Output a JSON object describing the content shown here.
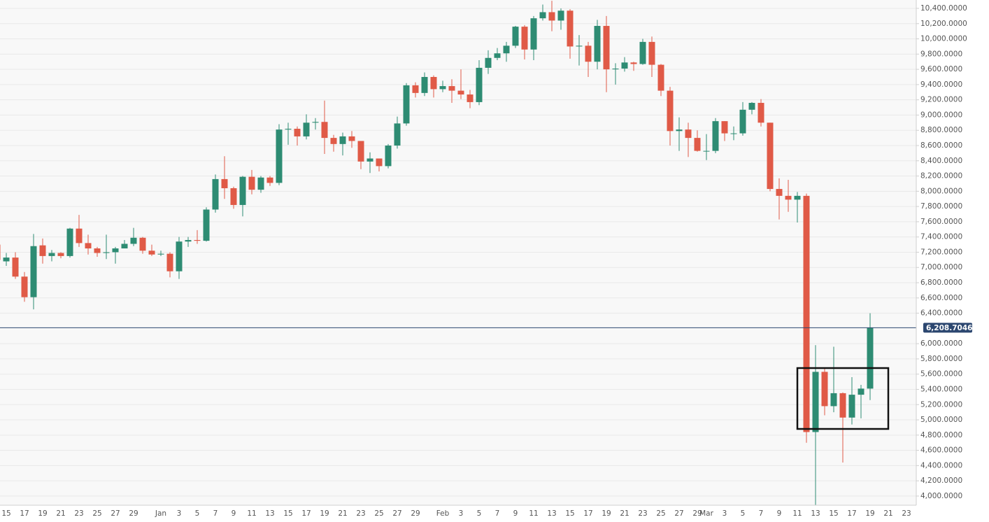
{
  "chart_data": {
    "type": "candlestick",
    "up_color": "#2e8c73",
    "down_color": "#e05a47",
    "grid": true,
    "categories": [
      null,
      "15",
      null,
      "17",
      null,
      "19",
      null,
      "21",
      null,
      "23",
      null,
      "25",
      null,
      "27",
      null,
      "29",
      null,
      null,
      "Jan",
      null,
      "3",
      null,
      "5",
      null,
      "7",
      null,
      "9",
      null,
      "11",
      null,
      "13",
      null,
      "15",
      null,
      "17",
      null,
      "19",
      null,
      "21",
      null,
      "23",
      null,
      "25",
      null,
      "27",
      null,
      "29",
      null,
      null,
      "Feb",
      null,
      "3",
      null,
      "5",
      null,
      "7",
      null,
      "9",
      null,
      "11",
      null,
      "13",
      null,
      "15",
      null,
      "17",
      null,
      "19",
      null,
      "21",
      null,
      "23",
      null,
      "25",
      null,
      "27",
      null,
      "29",
      "Mar",
      null,
      "3",
      null,
      "5",
      null,
      "7",
      null,
      "9",
      null,
      "11",
      null,
      "13",
      null,
      "15",
      null,
      "17",
      null,
      "19",
      null,
      "21",
      null,
      "23"
    ],
    "open": [
      7300,
      7080,
      7130,
      6880,
      6610,
      7290,
      7150,
      7190,
      7150,
      7510,
      7320,
      7250,
      7190,
      7200,
      7250,
      7310,
      7390,
      7220,
      7170,
      7180,
      6950,
      7340,
      7360,
      7350,
      7760,
      8160,
      8040,
      7820,
      8190,
      8020,
      8180,
      8110,
      8810,
      8820,
      8720,
      8900,
      8910,
      8700,
      8620,
      8720,
      8660,
      8390,
      8430,
      8330,
      8600,
      8890,
      9390,
      9290,
      9500,
      9340,
      9380,
      9320,
      9270,
      9170,
      9620,
      9750,
      9810,
      9910,
      10160,
      9860,
      10270,
      10350,
      10240,
      10370,
      9900,
      9910,
      9700,
      10170,
      9600,
      9610,
      9690,
      9670,
      9960,
      9660,
      9320,
      8790,
      8810,
      8700,
      8530,
      8530,
      8920,
      8760,
      8760,
      9070,
      9160,
      8900,
      8030,
      7940,
      7890,
      7940,
      4840,
      5630,
      5180,
      5350,
      5030,
      5330,
      5410,
      null,
      null,
      null,
      null
    ],
    "high": [
      7330,
      7190,
      7200,
      6940,
      7440,
      7380,
      7230,
      7200,
      7520,
      7690,
      7430,
      7270,
      7430,
      7270,
      7360,
      7520,
      7400,
      7300,
      7220,
      7200,
      7400,
      7400,
      7490,
      7790,
      8220,
      8460,
      8060,
      8200,
      8280,
      8200,
      8200,
      8880,
      8900,
      8850,
      9010,
      8960,
      9190,
      8740,
      8770,
      8790,
      8660,
      8510,
      8430,
      8620,
      8980,
      9420,
      9430,
      9560,
      9520,
      9450,
      9470,
      9600,
      9330,
      9720,
      9850,
      9880,
      9960,
      10170,
      10180,
      10300,
      10450,
      10500,
      10400,
      10390,
      10050,
      9960,
      10250,
      10300,
      9680,
      9760,
      9700,
      10000,
      10030,
      9670,
      9370,
      8970,
      8900,
      8800,
      8750,
      8960,
      8920,
      8850,
      9170,
      9170,
      9210,
      8900,
      8170,
      8150,
      7990,
      7970,
      5980,
      5680,
      5960,
      5360,
      5560,
      5460,
      6400,
      null,
      null,
      null,
      null
    ],
    "low": [
      7050,
      7020,
      6850,
      6550,
      6450,
      7050,
      7080,
      7120,
      7130,
      7270,
      7170,
      7140,
      7110,
      7050,
      7260,
      7280,
      7180,
      7150,
      7150,
      6870,
      6850,
      7270,
      7310,
      7340,
      7720,
      7900,
      7770,
      7670,
      7960,
      7980,
      8070,
      8080,
      8610,
      8600,
      8680,
      8810,
      8490,
      8520,
      8470,
      8570,
      8290,
      8240,
      8260,
      8300,
      8560,
      8860,
      9230,
      9250,
      9230,
      9300,
      9160,
      9210,
      9090,
      9130,
      9540,
      9720,
      9700,
      9880,
      9730,
      9720,
      10240,
      10100,
      10120,
      9740,
      9650,
      9500,
      9600,
      9300,
      9400,
      9570,
      9580,
      9660,
      9500,
      9250,
      8600,
      8530,
      8450,
      8520,
      8410,
      8500,
      8660,
      8670,
      8730,
      9010,
      8850,
      8000,
      7630,
      7730,
      7590,
      4700,
      3850,
      5060,
      5100,
      4440,
      4940,
      5020,
      5260,
      null,
      null,
      null,
      null
    ],
    "close": [
      7100,
      7130,
      6880,
      6610,
      7280,
      7150,
      7190,
      7150,
      7510,
      7320,
      7250,
      7190,
      7200,
      7250,
      7310,
      7390,
      7220,
      7170,
      7180,
      6950,
      7340,
      7360,
      7350,
      7760,
      8160,
      8040,
      7820,
      8190,
      8020,
      8180,
      8110,
      8810,
      8820,
      8720,
      8900,
      8910,
      8700,
      8620,
      8720,
      8660,
      8390,
      8430,
      8330,
      8600,
      8890,
      9390,
      9290,
      9500,
      9340,
      9380,
      9320,
      9270,
      9170,
      9620,
      9750,
      9810,
      9910,
      10160,
      9860,
      10270,
      10350,
      10240,
      10370,
      9900,
      9910,
      9700,
      10170,
      9600,
      9610,
      9690,
      9670,
      9960,
      9660,
      9320,
      8790,
      8810,
      8700,
      8530,
      8530,
      8920,
      8760,
      8760,
      9070,
      9160,
      8900,
      8030,
      7940,
      7890,
      7940,
      4840,
      5630,
      5180,
      5350,
      5030,
      5330,
      5410,
      6210,
      null,
      null,
      null,
      null
    ],
    "ylim": [
      3880,
      10510
    ],
    "yticks": [
      {
        "value": 4000,
        "label": "4,000.0000"
      },
      {
        "value": 4200,
        "label": "4,200.0000"
      },
      {
        "value": 4400,
        "label": "4,400.0000"
      },
      {
        "value": 4600,
        "label": "4,600.0000"
      },
      {
        "value": 4800,
        "label": "4,800.0000"
      },
      {
        "value": 5000,
        "label": "5,000.0000"
      },
      {
        "value": 5200,
        "label": "5,200.0000"
      },
      {
        "value": 5400,
        "label": "5,400.0000"
      },
      {
        "value": 5600,
        "label": "5,600.0000"
      },
      {
        "value": 5800,
        "label": "5,800.0000"
      },
      {
        "value": 6000,
        "label": "6,000.0000"
      },
      {
        "value": 6400,
        "label": "6,400.0000"
      },
      {
        "value": 6600,
        "label": "6,600.0000"
      },
      {
        "value": 6800,
        "label": "6,800.0000"
      },
      {
        "value": 7000,
        "label": "7,000.0000"
      },
      {
        "value": 7200,
        "label": "7,200.0000"
      },
      {
        "value": 7400,
        "label": "7,400.0000"
      },
      {
        "value": 7600,
        "label": "7,600.0000"
      },
      {
        "value": 7800,
        "label": "7,800.0000"
      },
      {
        "value": 8000,
        "label": "8,000.0000"
      },
      {
        "value": 8200,
        "label": "8,200.0000"
      },
      {
        "value": 8400,
        "label": "8,400.0000"
      },
      {
        "value": 8600,
        "label": "8,600.0000"
      },
      {
        "value": 8800,
        "label": "8,800.0000"
      },
      {
        "value": 9000,
        "label": "9,000.0000"
      },
      {
        "value": 9200,
        "label": "9,200.0000"
      },
      {
        "value": 9400,
        "label": "9,400.0000"
      },
      {
        "value": 9600,
        "label": "9,600.0000"
      },
      {
        "value": 9800,
        "label": "9,800.0000"
      },
      {
        "value": 10000,
        "label": "10,000.0000"
      },
      {
        "value": 10200,
        "label": "10,200.0000"
      },
      {
        "value": 10400,
        "label": "10,400.0000"
      }
    ],
    "last_price": {
      "value": 6208.7046,
      "label": "6,208.7046",
      "color": "#2c4770"
    }
  }
}
